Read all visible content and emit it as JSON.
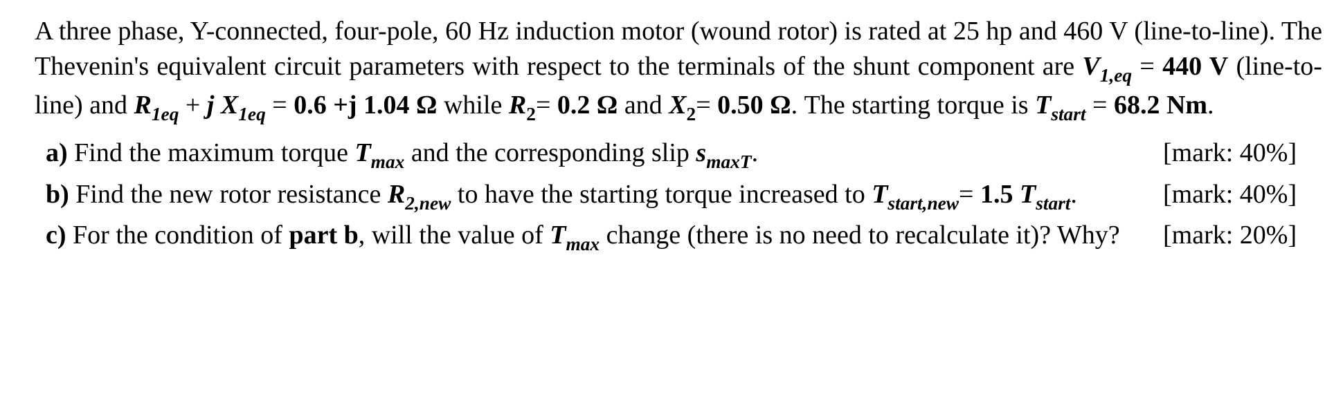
{
  "intro": {
    "t1": "A three phase, Y-connected, four-pole, 60 Hz induction motor (wound rotor) is rated at 25 hp and 460 V (line-to-line). The Thevenin's equivalent circuit parameters with respect to the terminals of the shunt component are ",
    "V1eq_sym": "V",
    "V1eq_sub": "1,eq",
    "eq1": " = ",
    "V1eq_val": "440 V",
    "t2": " (line-to-line) and ",
    "R1eq_sym": "R",
    "R1eq_sub": "1eq",
    "plus": " + ",
    "j1": "j ",
    "X1eq_sym": "X",
    "X1eq_sub": "1eq",
    "eq2": " = ",
    "Z_val": "0.6 +j 1.04 Ω",
    "t3": " while ",
    "R2_sym": "R",
    "R2_sub": "2",
    "eq3": "= ",
    "R2_val": "0.2 Ω",
    "and": " and  ",
    "X2_sym": "X",
    "X2_sub": "2",
    "eq4": "= ",
    "X2_val": "0.50 Ω",
    "t4": ". The starting torque is ",
    "Tstart_sym": "T",
    "Tstart_sub": "start",
    "eq5": " = ",
    "Tstart_val": "68.2 Nm",
    "t5": "."
  },
  "parts": {
    "a": {
      "label": "a)",
      "t1": " Find the maximum torque ",
      "Tmax_sym": "T",
      "Tmax_sub": "max",
      "t2": " and the corresponding slip ",
      "s_sym": "s",
      "s_sub": "maxT",
      "t3": ".",
      "mark": "[mark: 40%]"
    },
    "b": {
      "label": "b)",
      "t1": " Find the new rotor resistance ",
      "R2n_sym": "R",
      "R2n_sub": "2,new",
      "t2": " to have the starting torque increased to ",
      "Tsn_sym": "T",
      "Tsn_sub": "start,new",
      "eq": "= ",
      "factor": "1.5 ",
      "Ts_sym": "T",
      "Ts_sub": "start",
      "t3": ".",
      "mark": "[mark: 40%]"
    },
    "c": {
      "label": "c)",
      "t1": " For the condition of ",
      "partb": "part b",
      "t2": ", will the value of ",
      "Tmax_sym": "T",
      "Tmax_sub": "max",
      "t3": " change (there is no need to recalculate it)?  Why?",
      "mark": "[mark: 20%]"
    }
  }
}
